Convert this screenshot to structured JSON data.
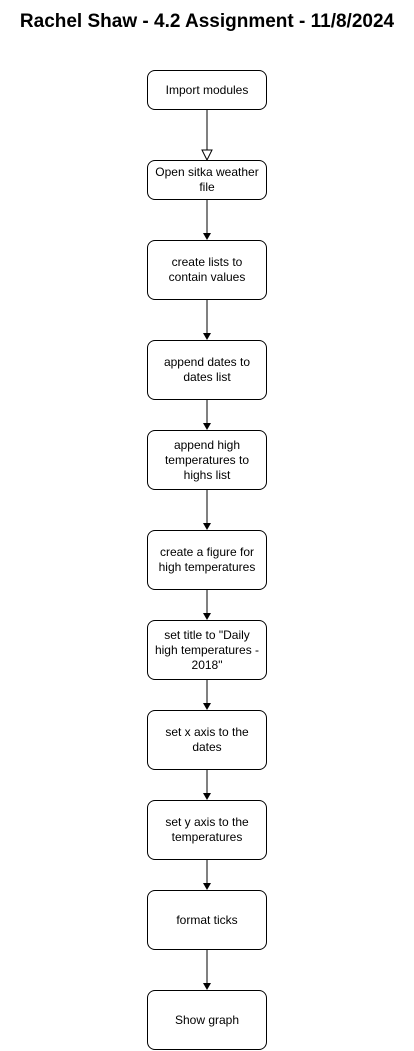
{
  "title": "Rachel Shaw - 4.2 Assignment - 11/8/2024",
  "steps": [
    "Import modules",
    "Open sitka weather file",
    "create lists to contain values",
    "append dates to dates list",
    "append high temperatures to highs list",
    "create a figure for high temperatures",
    "set title to \"Daily high temperatures - 2018\"",
    "set x axis to the dates",
    "set y axis to the temperatures",
    "format ticks",
    "Show graph"
  ],
  "connectors": [
    {
      "from": 0,
      "to": 1,
      "head": "open-triangle"
    },
    {
      "from": 1,
      "to": 2,
      "head": "filled"
    },
    {
      "from": 2,
      "to": 3,
      "head": "filled"
    },
    {
      "from": 3,
      "to": 4,
      "head": "filled"
    },
    {
      "from": 4,
      "to": 5,
      "head": "filled"
    },
    {
      "from": 5,
      "to": 6,
      "head": "filled"
    },
    {
      "from": 6,
      "to": 7,
      "head": "filled"
    },
    {
      "from": 7,
      "to": 8,
      "head": "filled"
    },
    {
      "from": 8,
      "to": 9,
      "head": "filled"
    },
    {
      "from": 9,
      "to": 10,
      "head": "filled"
    }
  ]
}
